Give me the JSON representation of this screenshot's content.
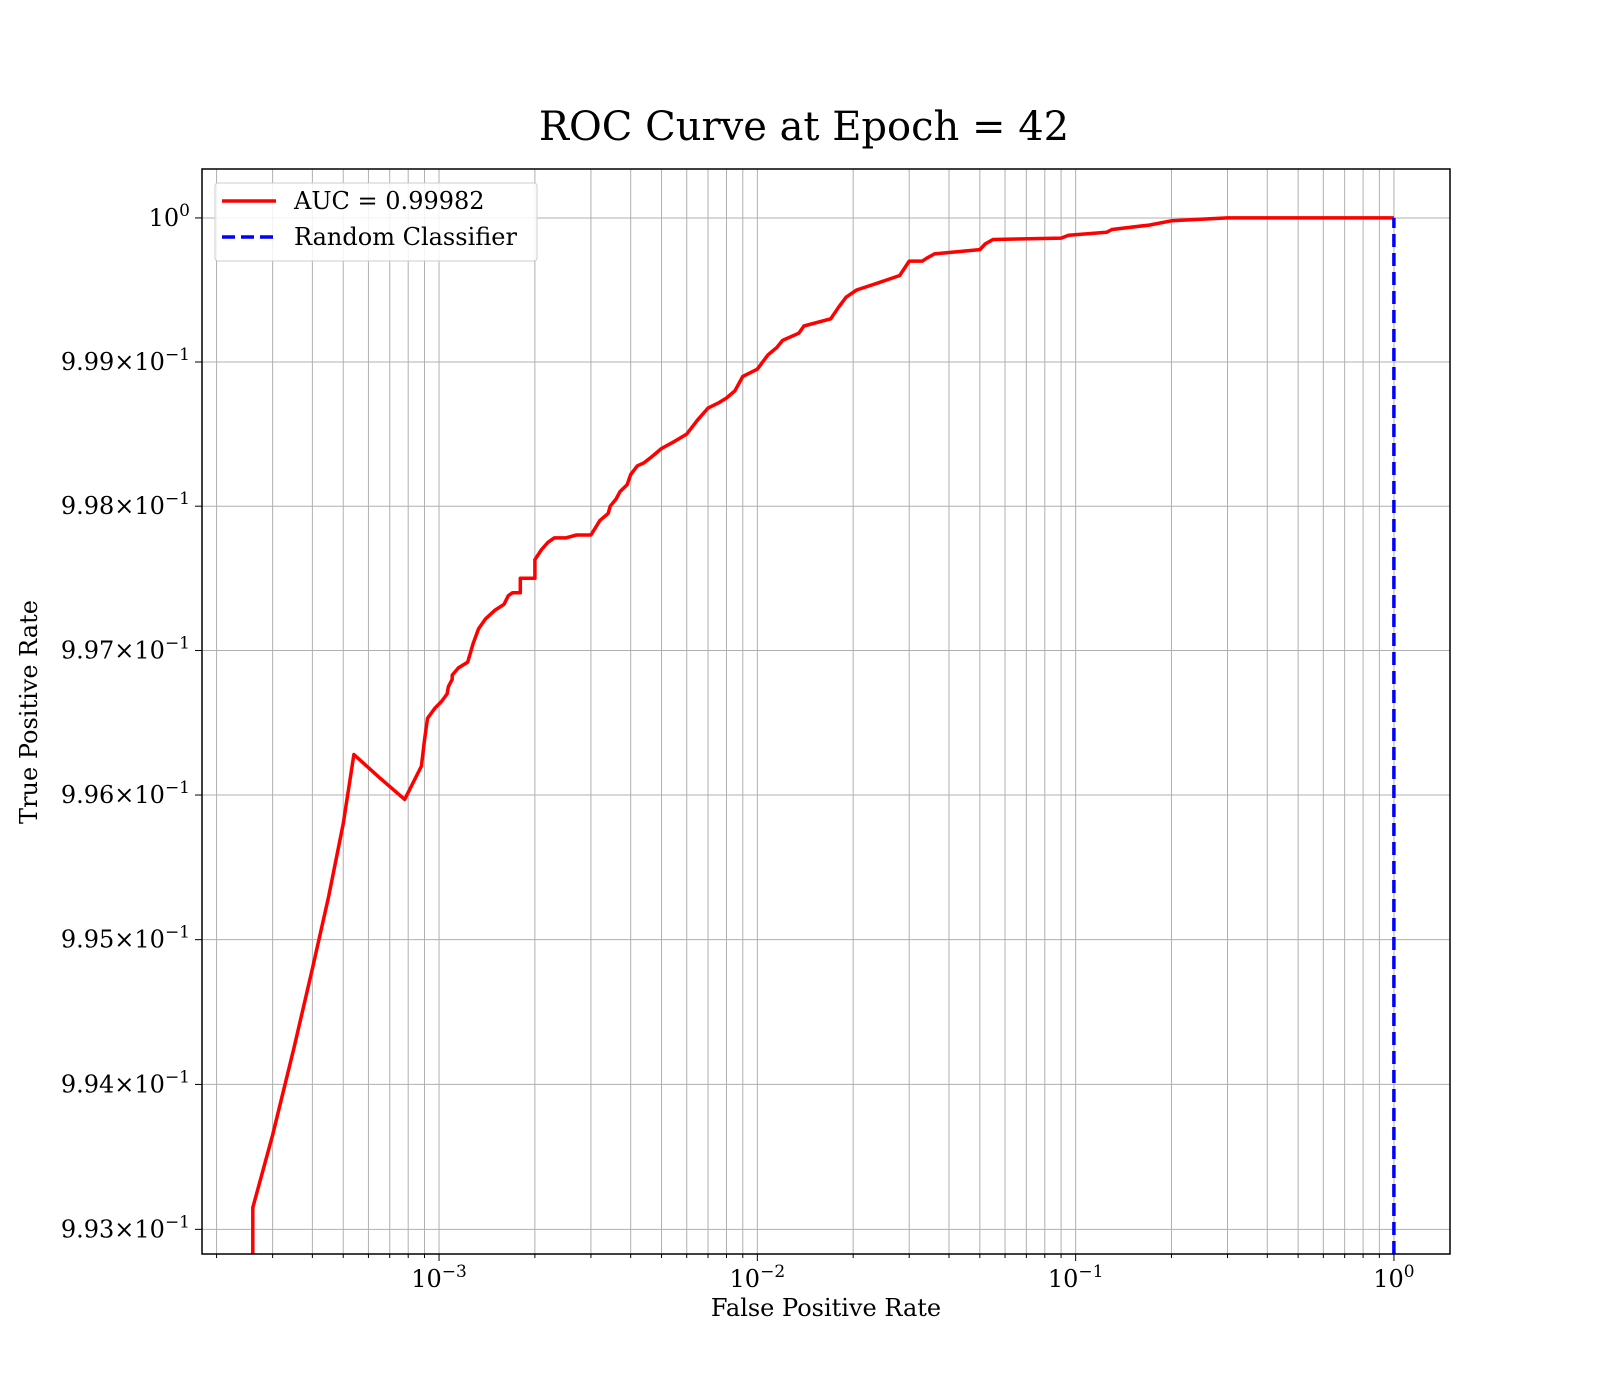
{
  "chart_data": {
    "type": "line",
    "title": "ROC Curve at Epoch = 42",
    "xlabel": "False Positive Rate",
    "ylabel": "True Positive Rate",
    "xscale": "log",
    "yscale": "log",
    "xlim": [
      0.00018,
      1.5
    ],
    "ylim": [
      0.99283,
      1.00034
    ],
    "grid": "both major and minor",
    "legend_position": "upper-left",
    "x_ticks": [
      {
        "value": 0.001,
        "base": "10",
        "exp": "−3"
      },
      {
        "value": 0.01,
        "base": "10",
        "exp": "−2"
      },
      {
        "value": 0.1,
        "base": "10",
        "exp": "−1"
      },
      {
        "value": 1,
        "base": "10",
        "exp": "0"
      }
    ],
    "y_ticks": [
      {
        "value": 1.0,
        "mant": "",
        "base": "10",
        "exp": "0"
      },
      {
        "value": 0.999,
        "mant": "9.99",
        "base": "10",
        "exp": "−1"
      },
      {
        "value": 0.998,
        "mant": "9.98",
        "base": "10",
        "exp": "−1"
      },
      {
        "value": 0.997,
        "mant": "9.97",
        "base": "10",
        "exp": "−1"
      },
      {
        "value": 0.996,
        "mant": "9.96",
        "base": "10",
        "exp": "−1"
      },
      {
        "value": 0.995,
        "mant": "9.95",
        "base": "10",
        "exp": "−1"
      },
      {
        "value": 0.994,
        "mant": "9.94",
        "base": "10",
        "exp": "−1"
      },
      {
        "value": 0.993,
        "mant": "9.93",
        "base": "10",
        "exp": "−1"
      }
    ],
    "series": [
      {
        "name": "AUC = 0.99982",
        "color": "#ff0000",
        "style": "solid",
        "x": [
          0.00026,
          0.00026,
          0.0003,
          0.00035,
          0.0004,
          0.00045,
          0.0005,
          0.00054,
          0.00065,
          0.00078,
          0.00088,
          0.0009,
          0.00092,
          0.00097,
          0.00102,
          0.00106,
          0.00107,
          0.0011,
          0.0011,
          0.00115,
          0.00123,
          0.00128,
          0.00133,
          0.0014,
          0.0015,
          0.0016,
          0.00165,
          0.0017,
          0.0018,
          0.0018,
          0.002,
          0.002,
          0.0021,
          0.0022,
          0.0023,
          0.0025,
          0.0027,
          0.0028,
          0.003,
          0.0031,
          0.0032,
          0.0034,
          0.00345,
          0.0036,
          0.0037,
          0.0039,
          0.004,
          0.0042,
          0.0044,
          0.0047,
          0.005,
          0.0055,
          0.006,
          0.0065,
          0.007,
          0.0076,
          0.008,
          0.0085,
          0.009,
          0.01,
          0.0108,
          0.0115,
          0.012,
          0.0135,
          0.014,
          0.017,
          0.018,
          0.019,
          0.0205,
          0.024,
          0.028,
          0.03,
          0.033,
          0.034,
          0.036,
          0.05,
          0.052,
          0.055,
          0.09,
          0.095,
          0.125,
          0.13,
          0.17,
          0.2,
          0.3,
          0.5,
          1.0
        ],
        "y": [
          0.99283,
          0.99315,
          0.99365,
          0.99425,
          0.9948,
          0.9953,
          0.9958,
          0.99628,
          0.99612,
          0.99597,
          0.9962,
          0.99638,
          0.99653,
          0.9966,
          0.99665,
          0.9967,
          0.99675,
          0.9968,
          0.99683,
          0.99688,
          0.99692,
          0.99705,
          0.99715,
          0.99722,
          0.99728,
          0.99732,
          0.99738,
          0.9974,
          0.9974,
          0.9975,
          0.9975,
          0.99763,
          0.9977,
          0.99775,
          0.99778,
          0.99778,
          0.9978,
          0.9978,
          0.9978,
          0.99785,
          0.9979,
          0.99795,
          0.998,
          0.99805,
          0.9981,
          0.99815,
          0.99822,
          0.99828,
          0.9983,
          0.99835,
          0.9984,
          0.99845,
          0.9985,
          0.9986,
          0.99868,
          0.99872,
          0.99875,
          0.9988,
          0.9989,
          0.99895,
          0.99905,
          0.9991,
          0.99915,
          0.9992,
          0.99925,
          0.9993,
          0.99938,
          0.99945,
          0.9995,
          0.99955,
          0.9996,
          0.9997,
          0.9997,
          0.99972,
          0.99975,
          0.99978,
          0.99982,
          0.99985,
          0.99986,
          0.99988,
          0.9999,
          0.99992,
          0.99995,
          0.99998,
          1.0,
          1.0,
          1.0
        ]
      },
      {
        "name": "Random Classifier",
        "color": "#0000ff",
        "style": "dashed",
        "x": [
          1.0,
          1.0
        ],
        "y": [
          0.99283,
          1.0
        ]
      }
    ]
  }
}
